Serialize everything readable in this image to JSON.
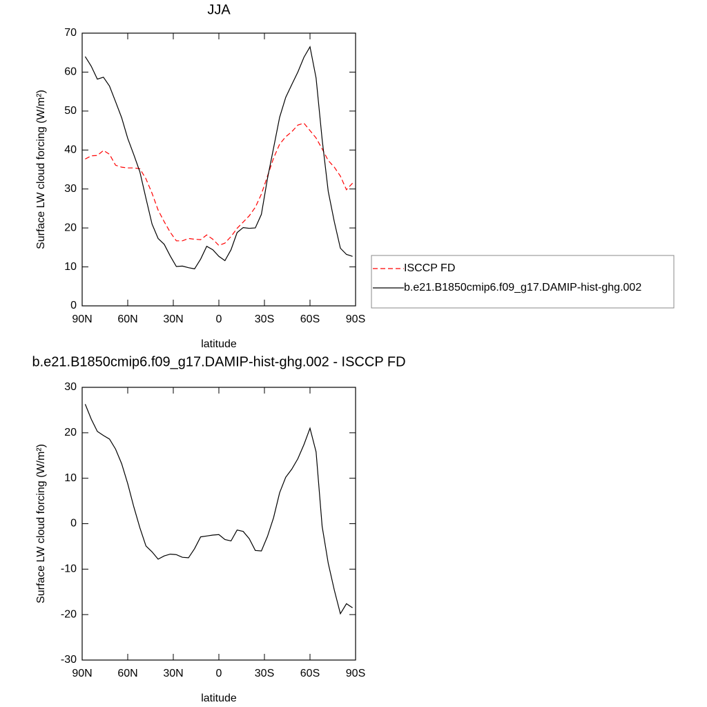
{
  "chart_data": [
    {
      "type": "line",
      "title": "JJA",
      "xlabel": "latitude",
      "ylabel": "Surface LW cloud forcing (W/m²)",
      "x": [
        88,
        84,
        80,
        76,
        72,
        68,
        64,
        60,
        56,
        52,
        48,
        44,
        40,
        36,
        32,
        28,
        24,
        20,
        16,
        12,
        8,
        4,
        0,
        -4,
        -8,
        -12,
        -16,
        -20,
        -24,
        -28,
        -32,
        -36,
        -40,
        -44,
        -48,
        -52,
        -56,
        -60,
        -64,
        -68,
        -72,
        -76,
        -80,
        -84,
        -88
      ],
      "xlim": [
        90,
        -90
      ],
      "xticks": [
        {
          "value": 90,
          "label": "90N"
        },
        {
          "value": 60,
          "label": "60N"
        },
        {
          "value": 30,
          "label": "30N"
        },
        0,
        {
          "value": -30,
          "label": "30S"
        },
        {
          "value": -60,
          "label": "60S"
        },
        {
          "value": -90,
          "label": "90S"
        }
      ],
      "ylim": [
        0,
        70
      ],
      "yticks": [
        0,
        10,
        20,
        30,
        40,
        50,
        60,
        70
      ],
      "legend": "right",
      "series": [
        {
          "name": "ISCCP FD",
          "color": "#ff0000",
          "dashed": true,
          "values": [
            37.7,
            38.5,
            38.6,
            39.9,
            38.9,
            36.1,
            35.6,
            35.4,
            35.4,
            35.2,
            32.6,
            28.9,
            24.6,
            21.6,
            18.9,
            16.7,
            16.7,
            17.3,
            17.1,
            17,
            18.2,
            17.1,
            15.5,
            16.1,
            17.8,
            19.9,
            21.5,
            23.1,
            25.3,
            28.7,
            33.3,
            37.9,
            41.5,
            43.4,
            44.7,
            46.4,
            46.9,
            45,
            43.1,
            40.3,
            37.3,
            35.6,
            33.3,
            29.8,
            31.5
          ]
        },
        {
          "name": "b.e21.B1850cmip6.f09_g17.DAMIP-hist-ghg.002",
          "color": "#000000",
          "dashed": false,
          "values": [
            64,
            61.5,
            58.2,
            58.7,
            56.4,
            52.4,
            48.3,
            43,
            38.8,
            34.4,
            27.6,
            21,
            17.3,
            15.8,
            12.8,
            10.1,
            10.2,
            9.8,
            9.5,
            12,
            15.3,
            14.4,
            12.7,
            11.6,
            14.4,
            18.8,
            20.1,
            19.9,
            20,
            23.5,
            32.7,
            40.5,
            48.4,
            53.5,
            56.8,
            60,
            63.8,
            66.5,
            58.5,
            42.7,
            29.4,
            21.6,
            14.8,
            13.2,
            12.7
          ]
        }
      ]
    },
    {
      "type": "line",
      "title": "b.e21.B1850cmip6.f09_g17.DAMIP-hist-ghg.002 - ISCCP FD",
      "xlabel": "latitude",
      "ylabel": "Surface LW cloud forcing (W/m²)",
      "x": [
        88,
        84,
        80,
        76,
        72,
        68,
        64,
        60,
        56,
        52,
        48,
        44,
        40,
        36,
        32,
        28,
        24,
        20,
        16,
        12,
        8,
        4,
        0,
        -4,
        -8,
        -12,
        -16,
        -20,
        -24,
        -28,
        -32,
        -36,
        -40,
        -44,
        -48,
        -52,
        -56,
        -60,
        -64,
        -68,
        -72,
        -76,
        -80,
        -84,
        -88
      ],
      "xlim": [
        90,
        -90
      ],
      "xticks": [
        {
          "value": 90,
          "label": "90N"
        },
        {
          "value": 60,
          "label": "60N"
        },
        {
          "value": 30,
          "label": "30N"
        },
        0,
        {
          "value": -30,
          "label": "30S"
        },
        {
          "value": -60,
          "label": "60S"
        },
        {
          "value": -90,
          "label": "90S"
        }
      ],
      "ylim": [
        -30,
        30
      ],
      "yticks": [
        -30,
        -20,
        -10,
        0,
        10,
        20,
        30
      ],
      "series": [
        {
          "color": "#000000",
          "dashed": false,
          "values": [
            26.3,
            23,
            20.3,
            19.4,
            18.6,
            16.4,
            13.2,
            8.8,
            3.7,
            -0.9,
            -4.9,
            -6.2,
            -7.8,
            -7.1,
            -6.7,
            -6.8,
            -7.4,
            -7.5,
            -5.5,
            -2.9,
            -2.7,
            -2.5,
            -2.4,
            -3.5,
            -3.8,
            -1.4,
            -1.7,
            -3.3,
            -5.9,
            -6,
            -2.8,
            1.3,
            6.8,
            10.2,
            12,
            14.3,
            17.4,
            21,
            15.8,
            -0.6,
            -8.7,
            -14.6,
            -19.8,
            -17.6,
            -18.5
          ]
        }
      ]
    }
  ]
}
